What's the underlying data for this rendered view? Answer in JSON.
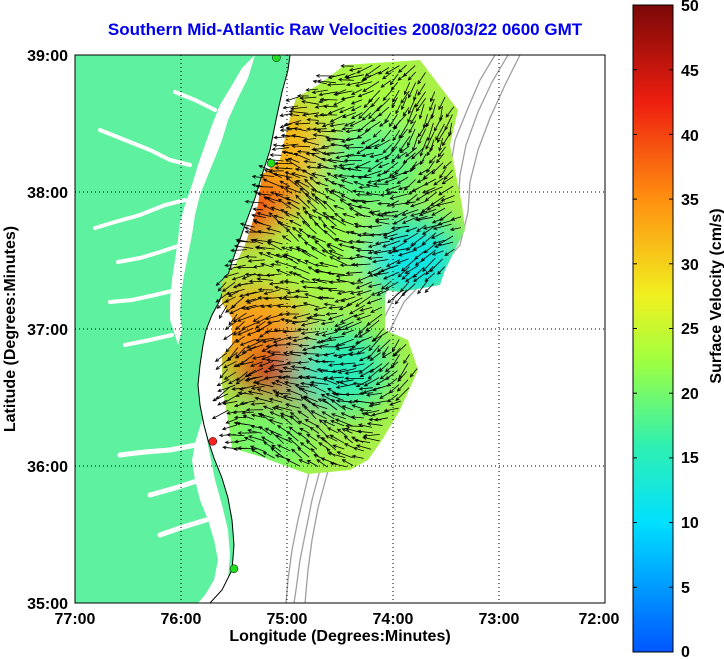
{
  "title": "Southern Mid-Atlantic Raw Velocities 2008/03/22 0600 GMT",
  "x_axis": {
    "label": "Longitude (Degrees:Minutes)",
    "ticks": [
      "77:00",
      "76:00",
      "75:00",
      "74:00",
      "73:00",
      "72:00"
    ]
  },
  "y_axis": {
    "label": "Latitude (Degrees:Minutes)",
    "ticks": [
      "39:00",
      "38:00",
      "37:00",
      "36:00",
      "35:00"
    ]
  },
  "colorbar": {
    "label": "Surface Velocity (cm/s)",
    "ticks": [
      "50",
      "45",
      "40",
      "35",
      "30",
      "25",
      "20",
      "15",
      "10",
      "5",
      "0"
    ],
    "min": 0,
    "max": 50
  },
  "colors": {
    "land": "#5ef2a0",
    "title": "#0000ee",
    "station_green": "#22dd22",
    "station_red": "#ff2020"
  },
  "chart_data": {
    "type": "heatmap",
    "grid": true,
    "x_range_deg_west": [
      77,
      72
    ],
    "y_range_deg_north": [
      35,
      39
    ],
    "speed_range_cm_s": [
      0,
      50
    ],
    "speed_regions": [
      {
        "lon_w": 75.3,
        "lat_n": 37.95,
        "speed": 40
      },
      {
        "lon_w": 75.1,
        "lat_n": 38.35,
        "speed": 32
      },
      {
        "lon_w": 75.3,
        "lat_n": 37.0,
        "speed": 34
      },
      {
        "lon_w": 75.0,
        "lat_n": 36.6,
        "speed": 45
      },
      {
        "lon_w": 74.7,
        "lat_n": 37.6,
        "speed": 22
      },
      {
        "lon_w": 74.2,
        "lat_n": 38.6,
        "speed": 23
      },
      {
        "lon_w": 74.2,
        "lat_n": 38.2,
        "speed": 18
      },
      {
        "lon_w": 73.8,
        "lat_n": 37.5,
        "speed": 12
      },
      {
        "lon_w": 74.5,
        "lat_n": 36.7,
        "speed": 15
      },
      {
        "lon_w": 75.2,
        "lat_n": 36.2,
        "speed": 20
      }
    ],
    "stations": [
      {
        "lon_w": 75.1,
        "lat_n": 38.98,
        "color": "green"
      },
      {
        "lon_w": 75.15,
        "lat_n": 38.21,
        "color": "green"
      },
      {
        "lon_w": 75.7,
        "lat_n": 36.18,
        "color": "red"
      },
      {
        "lon_w": 75.5,
        "lat_n": 35.25,
        "color": "green"
      }
    ]
  }
}
